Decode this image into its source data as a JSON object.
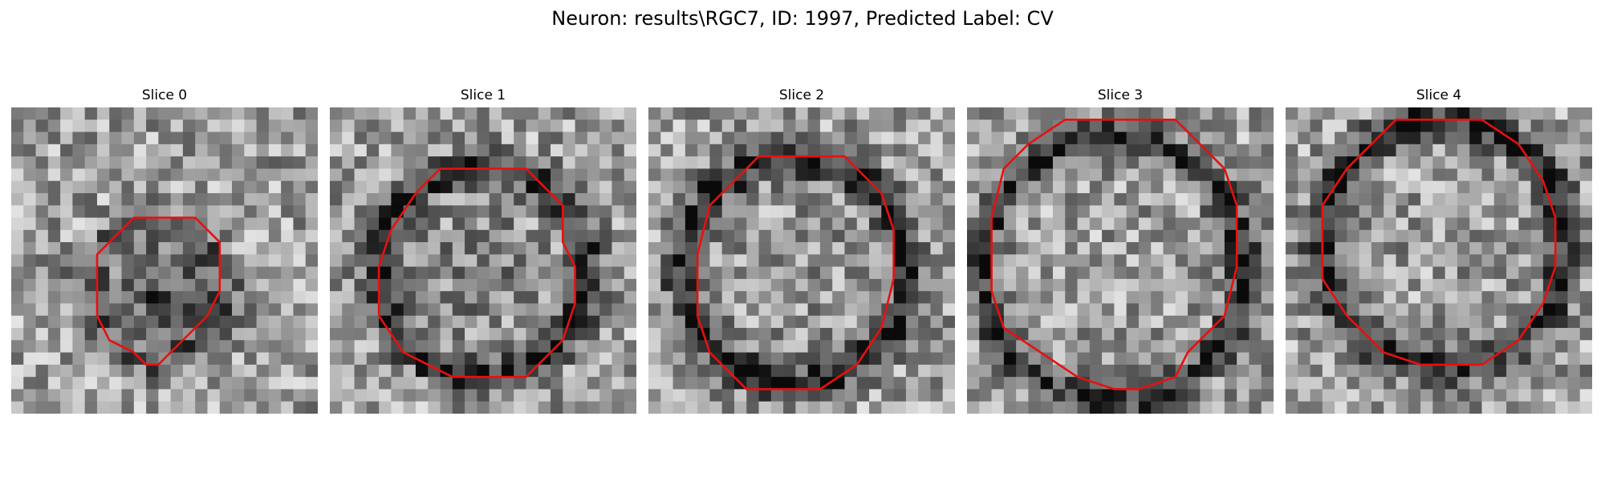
{
  "figure": {
    "title": "Neuron: results\\RGC7, ID: 1997, Predicted Label: CV",
    "contour_color": "#e8100f",
    "panels": [
      {
        "title": "Slice 0",
        "seed": 11,
        "ring_darkness": 0.25,
        "inner_darkness": 0.38,
        "contour": [
          [
            10,
            9
          ],
          [
            15,
            9
          ],
          [
            17,
            11
          ],
          [
            17,
            13
          ],
          [
            17,
            15
          ],
          [
            16,
            17
          ],
          [
            13,
            20
          ],
          [
            12,
            21
          ],
          [
            11,
            21
          ],
          [
            10,
            20
          ],
          [
            8,
            19
          ],
          [
            7,
            17
          ],
          [
            7,
            14
          ],
          [
            7,
            12
          ],
          [
            9,
            10
          ]
        ]
      },
      {
        "title": "Slice 1",
        "seed": 23,
        "ring_darkness": 0.45,
        "inner_darkness": 0.12,
        "contour": [
          [
            9,
            5
          ],
          [
            16,
            5
          ],
          [
            19,
            8
          ],
          [
            19,
            11
          ],
          [
            20,
            13
          ],
          [
            20,
            16
          ],
          [
            19,
            19
          ],
          [
            16,
            22
          ],
          [
            10,
            22
          ],
          [
            6,
            20
          ],
          [
            4,
            17
          ],
          [
            4,
            13
          ],
          [
            5,
            10
          ],
          [
            7,
            7
          ]
        ]
      },
      {
        "title": "Slice 2",
        "seed": 37,
        "ring_darkness": 0.5,
        "inner_darkness": 0.05,
        "contour": [
          [
            9,
            4
          ],
          [
            16,
            4
          ],
          [
            19,
            7
          ],
          [
            20,
            10
          ],
          [
            20,
            14
          ],
          [
            19,
            18
          ],
          [
            17,
            21
          ],
          [
            14,
            23
          ],
          [
            8,
            23
          ],
          [
            5,
            20
          ],
          [
            4,
            17
          ],
          [
            4,
            12
          ],
          [
            5,
            8
          ],
          [
            7,
            6
          ]
        ]
      },
      {
        "title": "Slice 3",
        "seed": 53,
        "ring_darkness": 0.42,
        "inner_darkness": 0.0,
        "contour": [
          [
            8,
            1
          ],
          [
            17,
            1
          ],
          [
            21,
            5
          ],
          [
            22,
            8
          ],
          [
            22,
            13
          ],
          [
            21,
            17
          ],
          [
            18,
            20
          ],
          [
            17,
            22
          ],
          [
            14,
            23
          ],
          [
            12,
            23
          ],
          [
            9,
            22
          ],
          [
            6,
            20
          ],
          [
            3,
            18
          ],
          [
            2,
            15
          ],
          [
            2,
            9
          ],
          [
            3,
            5
          ],
          [
            5,
            3
          ]
        ]
      },
      {
        "title": "Slice 4",
        "seed": 71,
        "ring_darkness": 0.5,
        "inner_darkness": 0.0,
        "contour": [
          [
            9,
            1
          ],
          [
            16,
            1
          ],
          [
            19,
            3
          ],
          [
            21,
            6
          ],
          [
            22,
            9
          ],
          [
            22,
            13
          ],
          [
            21,
            16
          ],
          [
            19,
            19
          ],
          [
            16,
            21
          ],
          [
            11,
            21
          ],
          [
            8,
            20
          ],
          [
            5,
            17
          ],
          [
            3,
            14
          ],
          [
            3,
            8
          ],
          [
            5,
            5
          ],
          [
            7,
            3
          ]
        ]
      }
    ]
  }
}
